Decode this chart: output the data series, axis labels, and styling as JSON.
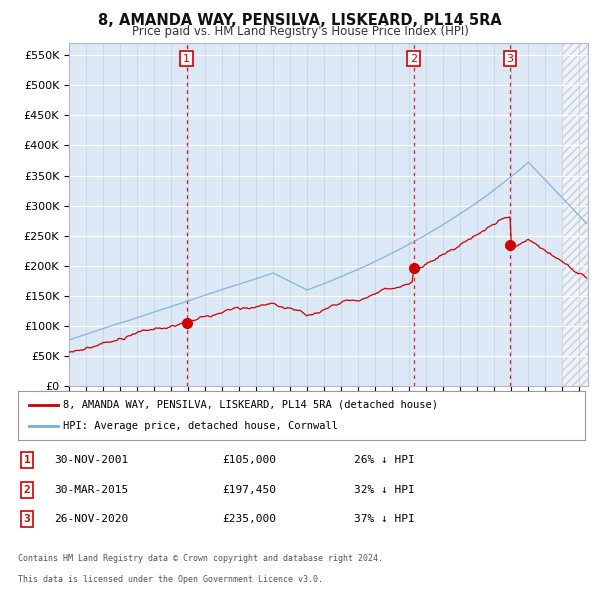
{
  "title": "8, AMANDA WAY, PENSILVA, LISKEARD, PL14 5RA",
  "subtitle": "Price paid vs. HM Land Registry's House Price Index (HPI)",
  "background_color": "#ffffff",
  "plot_background": "#dce8f5",
  "yticks": [
    0,
    50000,
    100000,
    150000,
    200000,
    250000,
    300000,
    350000,
    400000,
    450000,
    500000,
    550000
  ],
  "ylim": [
    0,
    570000
  ],
  "xlim_start": 1995.0,
  "xlim_end": 2025.5,
  "sale_dates": [
    2001.917,
    2015.25,
    2020.917
  ],
  "sale_prices": [
    105000,
    197450,
    235000
  ],
  "sale_labels": [
    "1",
    "2",
    "3"
  ],
  "vline_color": "#cc0000",
  "sale_marker_color": "#cc0000",
  "hpi_line_color": "#7bafd4",
  "price_line_color": "#cc0000",
  "hatch_start": 2024.0,
  "legend_entries": [
    "8, AMANDA WAY, PENSILVA, LISKEARD, PL14 5RA (detached house)",
    "HPI: Average price, detached house, Cornwall"
  ],
  "table_rows": [
    [
      "1",
      "30-NOV-2001",
      "£105,000",
      "26% ↓ HPI"
    ],
    [
      "2",
      "30-MAR-2015",
      "£197,450",
      "32% ↓ HPI"
    ],
    [
      "3",
      "26-NOV-2020",
      "£235,000",
      "37% ↓ HPI"
    ]
  ],
  "footnote1": "Contains HM Land Registry data © Crown copyright and database right 2024.",
  "footnote2": "This data is licensed under the Open Government Licence v3.0.",
  "label_box_color": "#cc0000",
  "label_text_color": "#ffffff"
}
